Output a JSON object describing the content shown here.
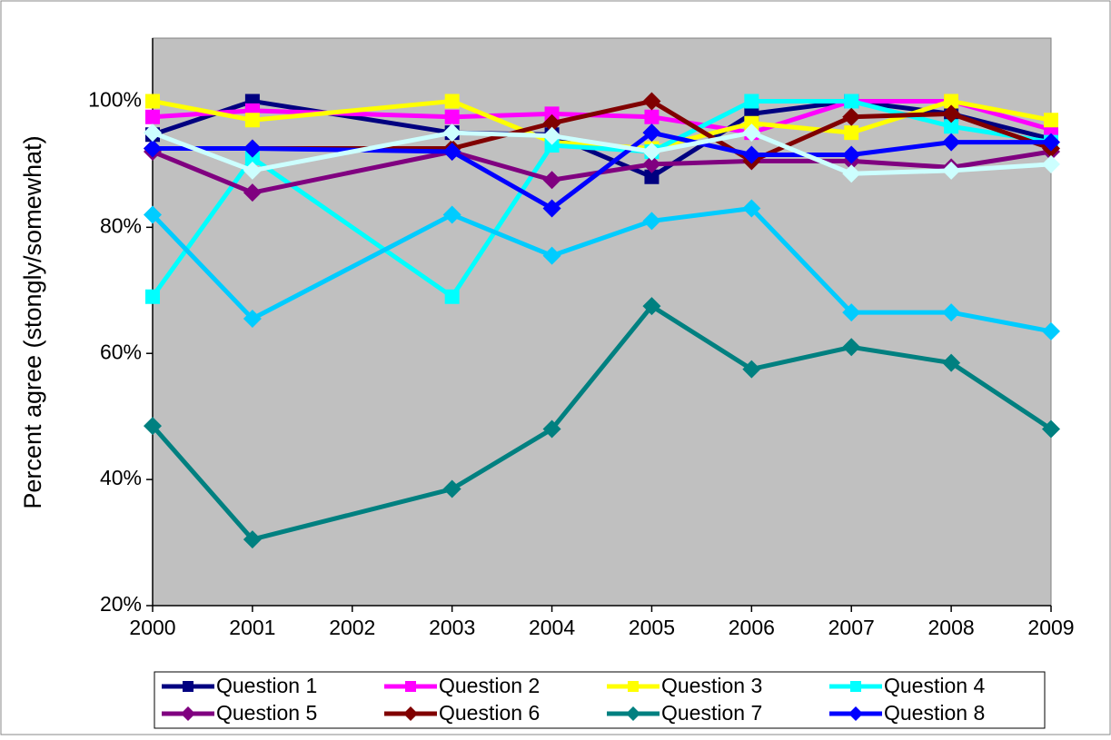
{
  "chart_data": {
    "type": "line",
    "y_label": "Percent agree (stongly/somewhat)",
    "x": [
      2000,
      2001,
      2003,
      2004,
      2005,
      2006,
      2007,
      2008,
      2009
    ],
    "xlim": [
      2000,
      2009
    ],
    "xticks": [
      2000,
      2001,
      2002,
      2003,
      2004,
      2005,
      2006,
      2007,
      2008,
      2009
    ],
    "ylim": [
      20,
      110
    ],
    "yticks": [
      {
        "value": 20,
        "label": "20%"
      },
      {
        "value": 40,
        "label": "40%"
      },
      {
        "value": 60,
        "label": "60%"
      },
      {
        "value": 80,
        "label": "80%"
      },
      {
        "value": 100,
        "label": "100%"
      }
    ],
    "plot_background": "#c0c0c0",
    "series": [
      {
        "name": "Question 1",
        "color": "#000080",
        "marker": "square",
        "values": [
          94.7,
          100,
          95,
          94.7,
          88,
          98,
          100,
          98,
          94
        ]
      },
      {
        "name": "Question 2",
        "color": "#ff00ff",
        "marker": "square",
        "values": [
          97.5,
          98.5,
          97.5,
          98,
          97.5,
          95,
          100,
          100,
          95.5
        ]
      },
      {
        "name": "Question 3",
        "color": "#ffff00",
        "marker": "square",
        "values": [
          100,
          97,
          100,
          93.5,
          92.5,
          96.5,
          95,
          100,
          97
        ]
      },
      {
        "name": "Question 4",
        "color": "#00ffff",
        "marker": "square",
        "values": [
          69,
          91,
          69,
          93,
          92,
          100,
          100,
          96,
          93.5
        ]
      },
      {
        "name": "Question 5",
        "color": "#800080",
        "marker": "diamond",
        "values": [
          92,
          85.5,
          92,
          87.5,
          90,
          90.5,
          90.5,
          89.5,
          92
        ]
      },
      {
        "name": "Question 6",
        "color": "#800000",
        "marker": "diamond",
        "values": [
          92.5,
          92.5,
          92.5,
          96.5,
          100,
          90.5,
          97.5,
          98,
          92.5
        ]
      },
      {
        "name": "Question 7",
        "color": "#008080",
        "marker": "diamond",
        "values": [
          48.5,
          30.5,
          38.5,
          48,
          67.5,
          57.5,
          61,
          58.5,
          48
        ]
      },
      {
        "name": "Question 8",
        "color": "#0000ff",
        "marker": "diamond",
        "values": [
          92.5,
          92.5,
          92,
          83,
          95,
          91.5,
          91.5,
          93.5,
          93.5
        ]
      },
      {
        "color": "#00ccff",
        "marker": "diamond",
        "values": [
          82,
          65.5,
          82,
          75.5,
          81,
          83,
          66.5,
          66.5,
          63.5
        ]
      },
      {
        "color": "#ccffff",
        "marker": "diamond",
        "values": [
          95,
          89,
          95,
          94.5,
          92,
          95,
          88.5,
          89,
          90
        ]
      }
    ]
  }
}
